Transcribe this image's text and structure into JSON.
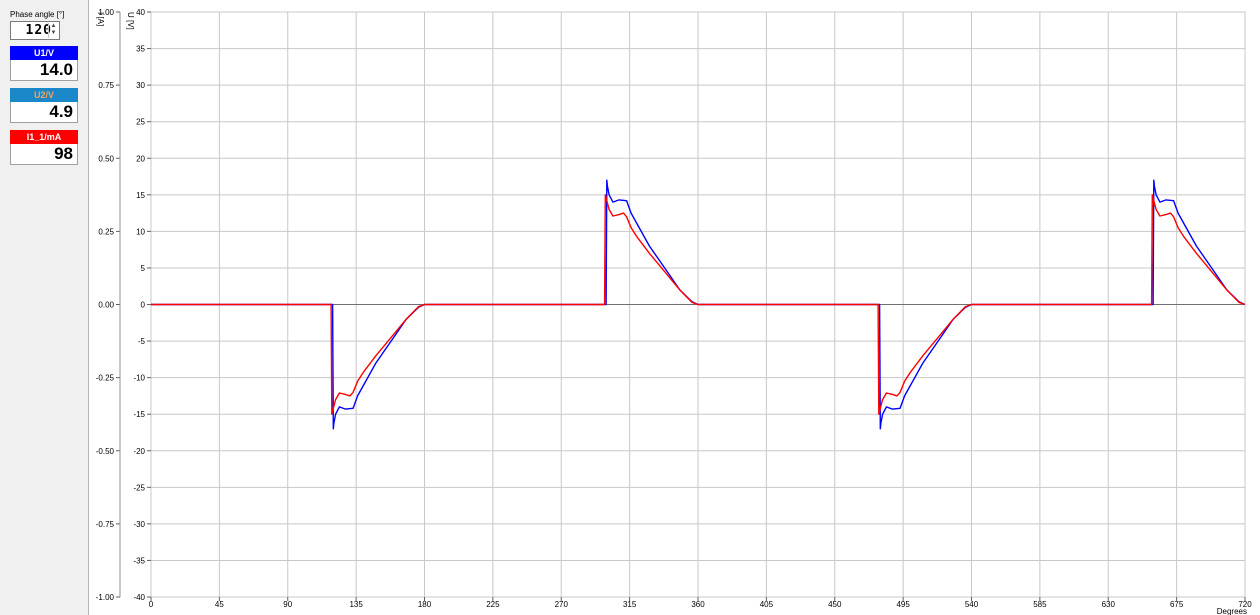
{
  "sidebar": {
    "phase_label": "Phase angle [°]",
    "phase_value": "120",
    "phase_up_arrow": "▲",
    "phase_down_arrow": "▼",
    "meters": [
      {
        "label": "U1/V",
        "value": "14.0",
        "color": "#0000ff",
        "text_color": "#ffffff"
      },
      {
        "label": "U2/V",
        "value": "4.9",
        "color": "#1a88c8",
        "text_color": "#f2a25a"
      },
      {
        "label": "I1_1/mA",
        "value": "98",
        "color": "#ff0000",
        "text_color": "#ffffff"
      }
    ]
  },
  "chart_data": {
    "type": "line",
    "xlabel": "Degrees",
    "xlim": [
      0,
      720
    ],
    "xticks": [
      0,
      45,
      90,
      135,
      180,
      225,
      270,
      315,
      360,
      405,
      450,
      495,
      540,
      585,
      630,
      675,
      720
    ],
    "left_axis_label": "I [A]",
    "left_ylim": [
      -1.0,
      1.0
    ],
    "left_ticks": [
      -1.0,
      -0.75,
      -0.5,
      -0.25,
      0.0,
      0.25,
      0.5,
      0.75,
      1.0
    ],
    "left_tick_labels": [
      "-1.00",
      "-0.75",
      "-0.50",
      "-0.25",
      "0.00",
      "0.25",
      "0.50",
      "0.75",
      "1.00"
    ],
    "right_axis_label": "U [V]",
    "right_ylim": [
      -40,
      40
    ],
    "right_ticks": [
      -40,
      -35,
      -30,
      -25,
      -20,
      -15,
      -10,
      -5,
      0,
      5,
      10,
      15,
      20,
      25,
      30,
      35,
      40
    ],
    "grid": true,
    "series": [
      {
        "color": "#0000ff",
        "axis": "U",
        "x": [
          0,
          119.5,
          120,
          120.4,
          121.5,
          124,
          128,
          133,
          136,
          140,
          148,
          158,
          168,
          176,
          180,
          299.5,
          300,
          300.4,
          301.5,
          304,
          308,
          313,
          316,
          320,
          328,
          338,
          348,
          356,
          360,
          479.5,
          480,
          480.4,
          481.5,
          484,
          488,
          493,
          496,
          500,
          508,
          518,
          528,
          536,
          540,
          659.5,
          660,
          660.4,
          661.5,
          664,
          668,
          673,
          676,
          680,
          688,
          698,
          708,
          716,
          720
        ],
        "y": [
          0,
          0,
          -17,
          -16.2,
          -15,
          -14,
          -14.3,
          -14.2,
          -12.5,
          -11,
          -8,
          -5,
          -2,
          -0.4,
          0,
          0,
          17,
          16.2,
          15,
          14,
          14.3,
          14.2,
          12.5,
          11,
          8,
          5,
          2,
          0.4,
          0,
          0,
          -17,
          -16.2,
          -15,
          -14,
          -14.3,
          -14.2,
          -12.5,
          -11,
          -8,
          -5,
          -2,
          -0.4,
          0,
          0,
          17,
          16.2,
          15,
          14,
          14.3,
          14.2,
          12.5,
          11,
          8,
          5,
          2,
          0.4,
          0
        ]
      },
      {
        "color": "#ff0000",
        "axis": "U",
        "x": [
          0,
          118.5,
          119,
          120,
          121.5,
          124,
          128,
          131,
          133,
          136,
          140,
          148,
          158,
          168,
          176,
          180,
          298.5,
          299,
          300,
          301.5,
          304,
          308,
          311,
          313,
          316,
          320,
          328,
          338,
          348,
          356,
          360,
          478.5,
          479,
          480,
          481.5,
          484,
          488,
          491,
          493,
          496,
          500,
          508,
          518,
          528,
          536,
          540,
          658.5,
          659,
          660,
          661.5,
          664,
          668,
          671,
          673,
          676,
          680,
          688,
          698,
          708,
          716,
          720
        ],
        "y": [
          0,
          0,
          -15,
          -14.2,
          -13,
          -12.1,
          -12.3,
          -12.5,
          -12,
          -10.5,
          -9.2,
          -7,
          -4.5,
          -2,
          -0.3,
          0,
          0,
          15,
          14.2,
          13,
          12.1,
          12.3,
          12.5,
          12,
          10.5,
          9.2,
          7,
          4.5,
          2,
          0.3,
          0,
          0,
          -15,
          -14.2,
          -13,
          -12.1,
          -12.3,
          -12.5,
          -12,
          -10.5,
          -9.2,
          -7,
          -4.5,
          -2,
          -0.3,
          0,
          0,
          15,
          14.2,
          13,
          12.1,
          12.3,
          12.5,
          12,
          10.5,
          9.2,
          7,
          4.5,
          2,
          0.3,
          0
        ]
      }
    ]
  }
}
